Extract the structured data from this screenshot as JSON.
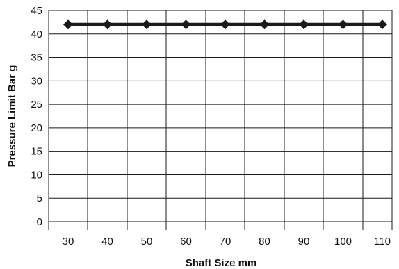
{
  "chart_data": {
    "type": "line",
    "title": "",
    "xlabel": "Shaft Size mm",
    "ylabel": "Pressure Limit Bar g",
    "x_tick_labels": [
      "30",
      "40",
      "50",
      "60",
      "70",
      "80",
      "90",
      "100",
      "110"
    ],
    "y_tick_labels": [
      "0",
      "5",
      "10",
      "15",
      "20",
      "25",
      "30",
      "35",
      "40",
      "45"
    ],
    "y_ticks": [
      0,
      5,
      10,
      15,
      20,
      25,
      30,
      35,
      40,
      45
    ],
    "ylim": [
      0,
      45
    ],
    "x_categories": [
      30,
      40,
      50,
      60,
      70,
      80,
      90,
      100,
      110
    ],
    "grid": true,
    "legend": "none",
    "series": [
      {
        "values": [
          42,
          42,
          42,
          42,
          42,
          42,
          42,
          42,
          42
        ],
        "color": "#1a1a1a",
        "marker": "diamond"
      }
    ]
  }
}
